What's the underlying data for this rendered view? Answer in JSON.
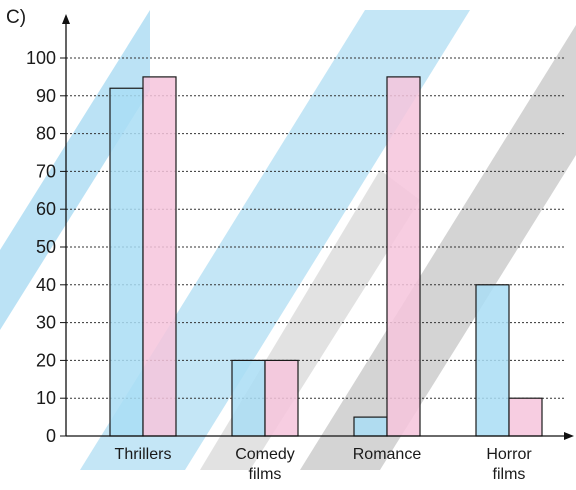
{
  "panel_label": "C)",
  "colors": {
    "series_a": "#a9ddf4",
    "series_b": "#f6c4dc",
    "bar_stroke": "#1a1a1a",
    "grid": "#333333",
    "axis": "#111111",
    "watermark_blue": "#2aa6e0",
    "watermark_gray": "#7a7a7a"
  },
  "chart_data": {
    "type": "bar",
    "categories": [
      [
        "Thrillers"
      ],
      [
        "Comedy",
        "films"
      ],
      [
        "Romance"
      ],
      [
        "Horror",
        "films"
      ]
    ],
    "series": [
      {
        "values": [
          92,
          20,
          5,
          40
        ]
      },
      {
        "values": [
          95,
          20,
          95,
          10
        ]
      }
    ],
    "yticks": [
      0,
      10,
      20,
      30,
      40,
      50,
      60,
      70,
      80,
      90,
      100
    ],
    "ylim": [
      0,
      100
    ],
    "grid": "horizontal-dotted",
    "title": "",
    "xlabel": "",
    "ylabel": ""
  }
}
